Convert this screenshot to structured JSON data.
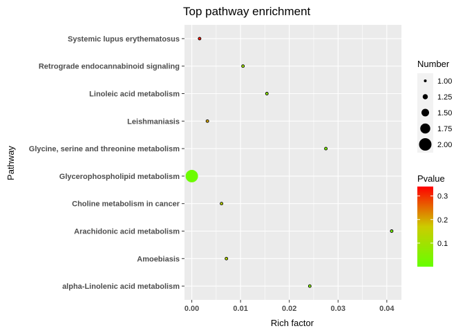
{
  "chart_data": {
    "type": "scatter",
    "title": "Top pathway enrichment",
    "xlabel": "Rich factor",
    "ylabel": "Pathway",
    "xlim": [
      -0.0015,
      0.043
    ],
    "x_ticks": [
      0.0,
      0.01,
      0.02,
      0.03,
      0.04
    ],
    "x_tick_labels": [
      "0.00",
      "0.01",
      "0.02",
      "0.03",
      "0.04"
    ],
    "grid": true,
    "categories": [
      "Systemic lupus erythematosus",
      "Retrograde endocannabinoid signaling",
      "Linoleic acid metabolism",
      "Leishmaniasis",
      "Glycine, serine and threonine metabolism",
      "Glycerophospholipid metabolism",
      "Choline metabolism in cancer",
      "Arachidonic acid metabolism",
      "Amoebiasis",
      "alpha-Linolenic acid metabolism"
    ],
    "points": [
      {
        "pathway": "Systemic lupus erythematosus",
        "rich_factor": 0.0016,
        "number": 1,
        "pvalue": 0.32
      },
      {
        "pathway": "Retrograde endocannabinoid signaling",
        "rich_factor": 0.0105,
        "number": 1,
        "pvalue": 0.1
      },
      {
        "pathway": "Linoleic acid metabolism",
        "rich_factor": 0.0154,
        "number": 1,
        "pvalue": 0.07
      },
      {
        "pathway": "Leishmaniasis",
        "rich_factor": 0.0032,
        "number": 1,
        "pvalue": 0.2
      },
      {
        "pathway": "Glycine, serine and threonine metabolism",
        "rich_factor": 0.0275,
        "number": 1,
        "pvalue": 0.04
      },
      {
        "pathway": "Glycerophospholipid metabolism",
        "rich_factor": 0.0,
        "number": 2,
        "pvalue": 0.01
      },
      {
        "pathway": "Choline metabolism in cancer",
        "rich_factor": 0.0061,
        "number": 1,
        "pvalue": 0.14
      },
      {
        "pathway": "Arachidonic acid metabolism",
        "rich_factor": 0.041,
        "number": 1,
        "pvalue": 0.03
      },
      {
        "pathway": "Amoebiasis",
        "rich_factor": 0.0071,
        "number": 1,
        "pvalue": 0.13
      },
      {
        "pathway": "alpha-Linolenic acid metabolism",
        "rich_factor": 0.0242,
        "number": 1,
        "pvalue": 0.05
      }
    ],
    "legend_size": {
      "title": "Number",
      "values": [
        1.0,
        1.25,
        1.5,
        1.75,
        2.0
      ],
      "labels": [
        "1.00",
        "1.25",
        "1.50",
        "1.75",
        "2.00"
      ]
    },
    "legend_color": {
      "title": "Pvalue",
      "range": [
        0.0,
        0.34
      ],
      "ticks": [
        0.3,
        0.2,
        0.1
      ],
      "tick_labels": [
        "0.3",
        "0.2",
        "0.1"
      ],
      "low_color": "#66ff00",
      "mid_color": "#cccc00",
      "high_color": "#ff0000"
    },
    "panel_color": "#ebebeb",
    "grid_color": "#ffffff",
    "legend_placement": "right"
  }
}
